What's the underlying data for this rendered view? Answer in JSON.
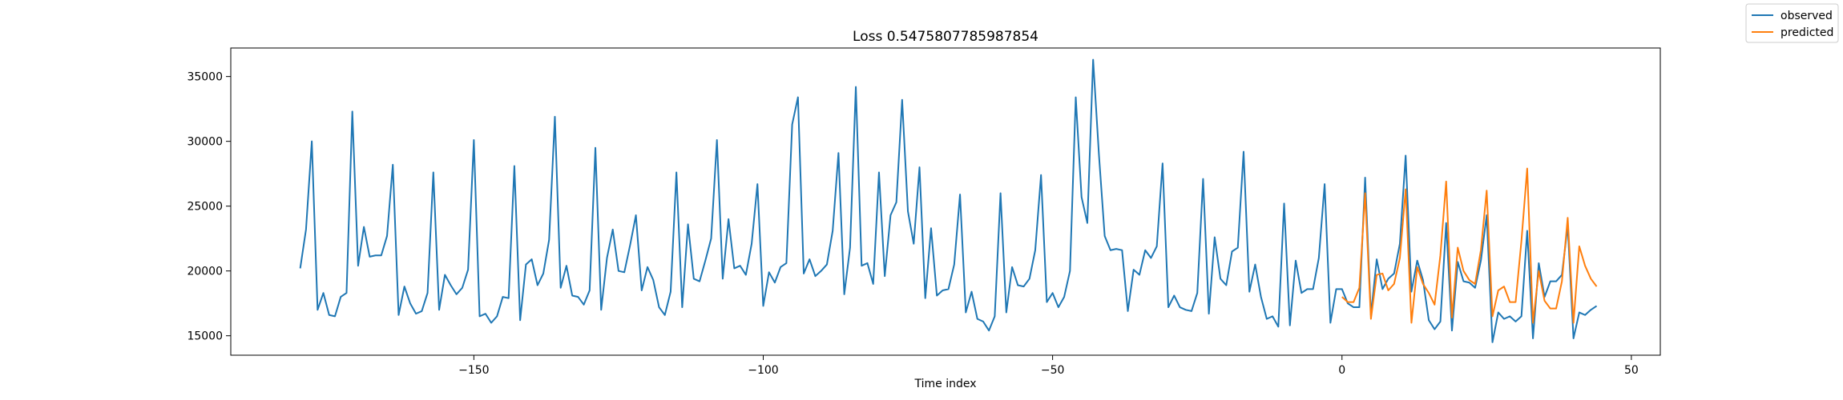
{
  "chart_data": {
    "type": "line",
    "title": "Loss 0.5475807785987854",
    "xlabel": "Time index",
    "ylabel": "",
    "xlim": [
      -192,
      55
    ],
    "ylim": [
      13500,
      37200
    ],
    "xticks": [
      -150,
      -100,
      -50,
      0,
      50
    ],
    "yticks": [
      15000,
      20000,
      25000,
      30000,
      35000
    ],
    "legend_position": "top-right (outside plot)",
    "series": [
      {
        "name": "observed",
        "color": "#1f77b4",
        "x_start": -180,
        "values": [
          20200,
          23200,
          30000,
          17000,
          18300,
          16600,
          16500,
          18000,
          18300,
          32300,
          20400,
          23400,
          21100,
          21200,
          21200,
          22700,
          28200,
          16600,
          18800,
          17500,
          16700,
          16900,
          18300,
          27600,
          17000,
          19700,
          18900,
          18200,
          18700,
          20100,
          30100,
          16500,
          16700,
          16000,
          16500,
          18000,
          17900,
          28100,
          16200,
          20500,
          20900,
          18900,
          19800,
          22400,
          31900,
          18700,
          20400,
          18100,
          18000,
          17400,
          18500,
          29500,
          17000,
          21000,
          23200,
          20000,
          19900,
          22000,
          24300,
          18500,
          20300,
          19300,
          17200,
          16600,
          18400,
          27600,
          17200,
          23600,
          19400,
          19200,
          20800,
          22500,
          30100,
          19400,
          24000,
          20200,
          20400,
          19700,
          22100,
          26700,
          17300,
          19900,
          19100,
          20300,
          20600,
          31300,
          33400,
          19800,
          20900,
          19600,
          20000,
          20500,
          23100,
          29100,
          18200,
          21800,
          34200,
          20400,
          20600,
          19000,
          27600,
          19600,
          24300,
          25300,
          33200,
          24600,
          22100,
          28000,
          17900,
          23300,
          18100,
          18500,
          18600,
          20500,
          25900,
          16800,
          18400,
          16300,
          16100,
          15400,
          16500,
          26000,
          16800,
          20300,
          18900,
          18800,
          19400,
          21600,
          27400,
          17600,
          18300,
          17200,
          18000,
          20000,
          33400,
          25700,
          23700,
          36300,
          29000,
          22700,
          21600,
          21700,
          21600,
          16900,
          20100,
          19700,
          21600,
          21000,
          21900,
          28300,
          17200,
          18100,
          17200,
          17000,
          16900,
          18300,
          27100,
          16700,
          22600,
          19400,
          18900,
          21500,
          21800,
          29200,
          18400,
          20500,
          18000,
          16300,
          16500,
          15700,
          25200,
          15800,
          20800,
          18300,
          18600,
          18600,
          21000,
          26700,
          16000,
          18600
        ],
        "observed_tail_x_start": 0,
        "observed_tail": [
          18600,
          17500,
          17200,
          17200,
          27200,
          16600,
          20900,
          18600,
          19400,
          19800,
          22100,
          28900,
          18400,
          20800,
          19300,
          16200,
          15500,
          16100,
          23700,
          15400,
          20700,
          19200,
          19100,
          18700,
          20800,
          24300,
          14500,
          16800,
          16300,
          16500,
          16100,
          16500,
          23100,
          14800,
          20600,
          18000,
          19200,
          19200,
          19700,
          23500,
          14800,
          16800,
          16600,
          17000,
          17300
        ]
      },
      {
        "name": "predicted",
        "color": "#ff7f0e",
        "x_start": 0,
        "values": [
          18000,
          17600,
          17600,
          18700,
          26000,
          16300,
          19700,
          19800,
          18500,
          19000,
          21000,
          26300,
          16000,
          20300,
          19000,
          18300,
          17400,
          21200,
          26900,
          16400,
          21800,
          20000,
          19300,
          19000,
          21600,
          26200,
          16500,
          18500,
          18800,
          17600,
          17600,
          22300,
          27900,
          16000,
          20000,
          17700,
          17100,
          17100,
          19200,
          24100,
          16000,
          21900,
          20400,
          19400,
          18800
        ]
      }
    ]
  }
}
